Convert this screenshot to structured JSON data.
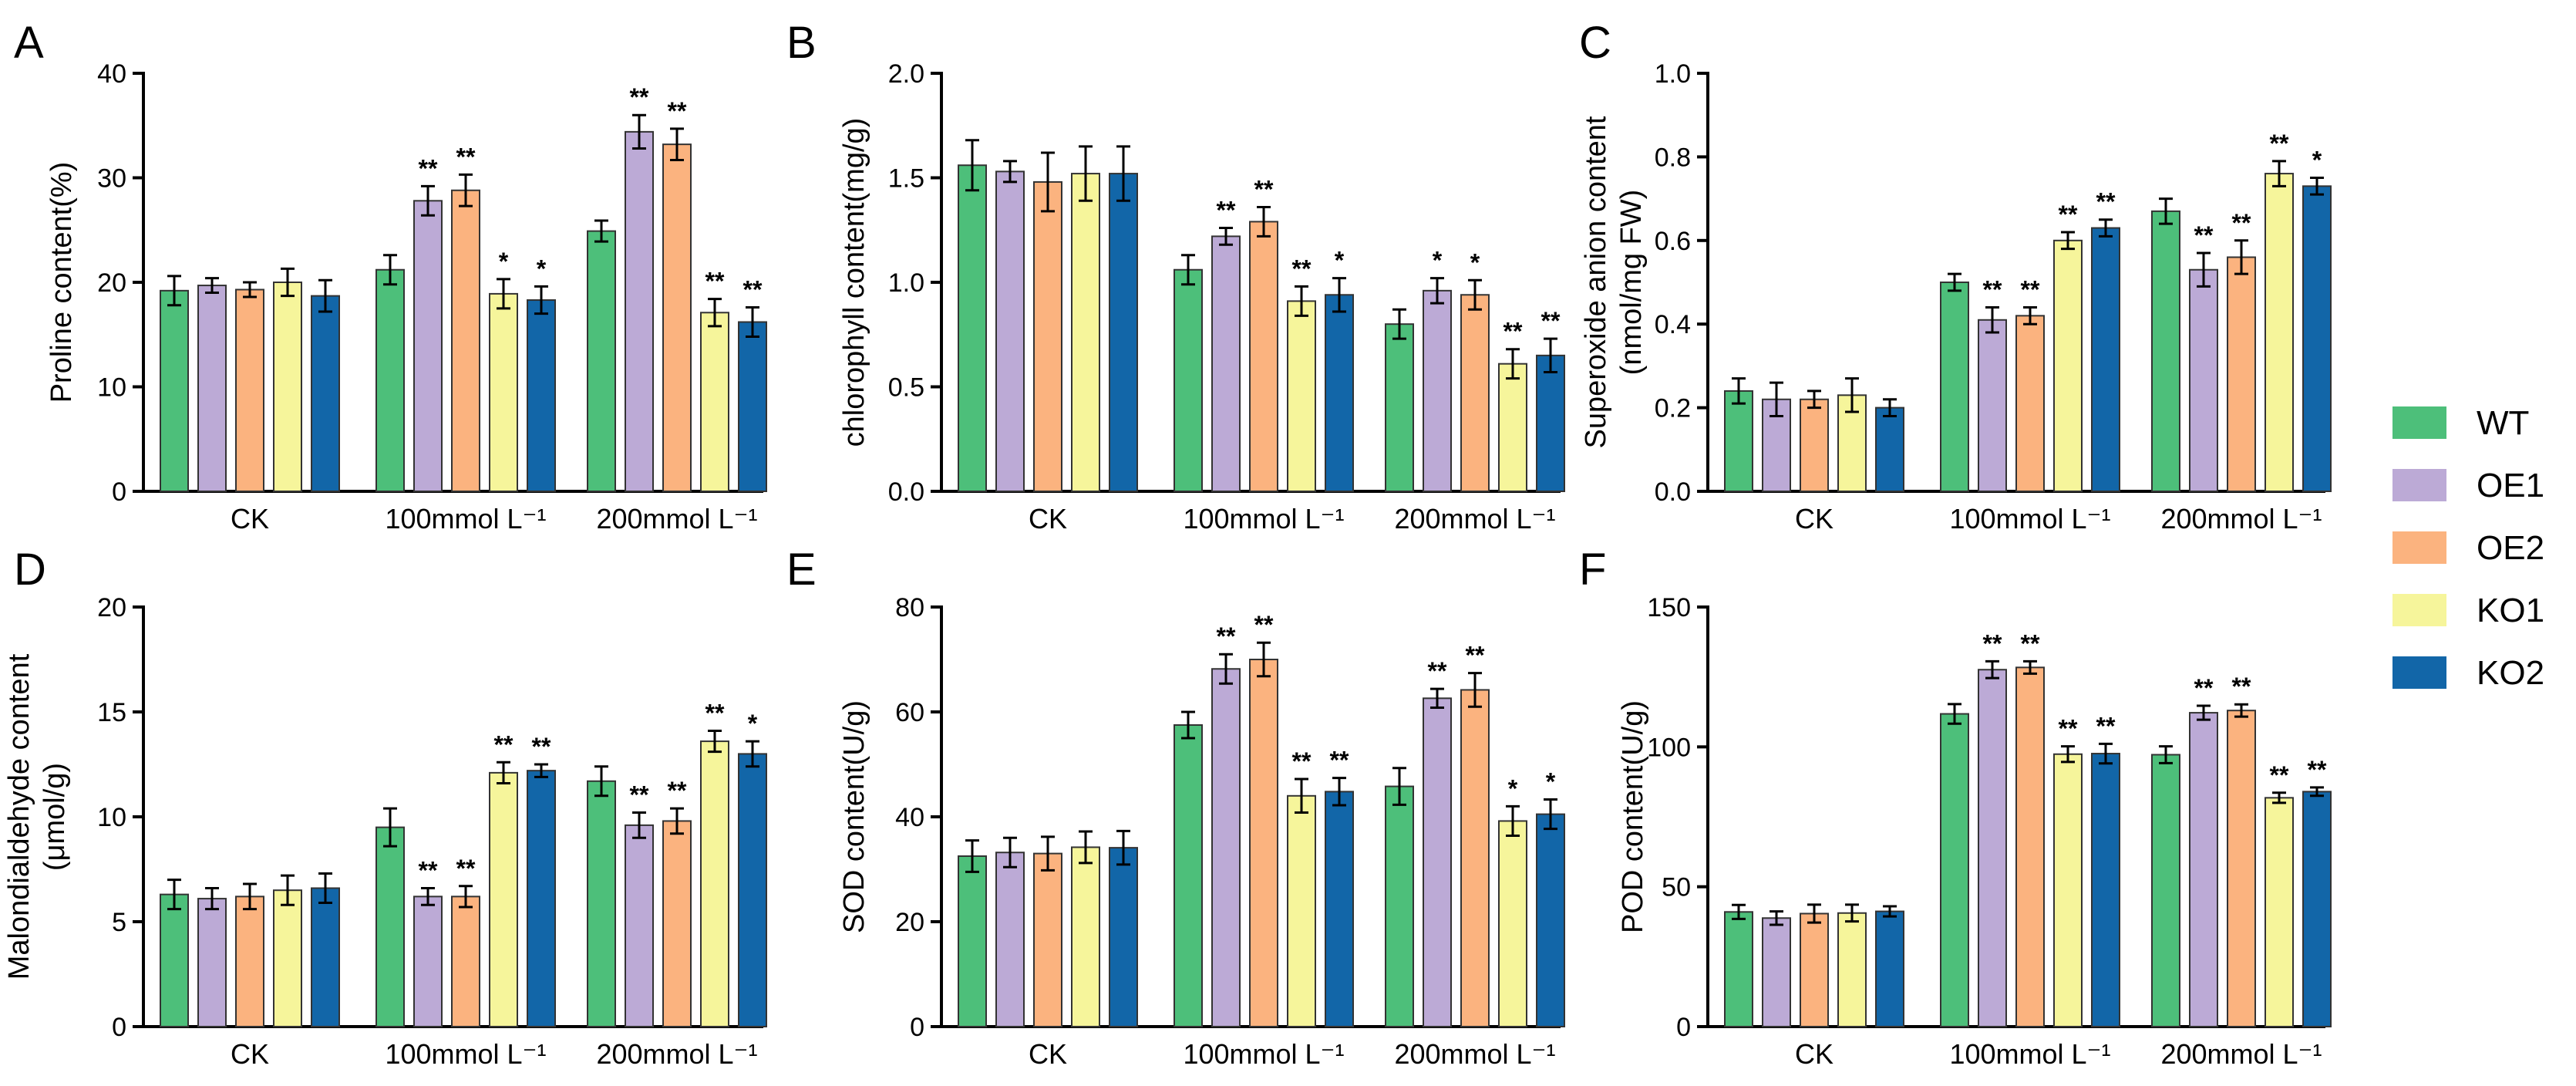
{
  "legend": {
    "items": [
      {
        "name": "WT",
        "color": "#4dbf7a"
      },
      {
        "name": "OE1",
        "color": "#bcaad6"
      },
      {
        "name": "OE2",
        "color": "#fbb37f"
      },
      {
        "name": "KO1",
        "color": "#f6f59b"
      },
      {
        "name": "KO2",
        "color": "#1266a8"
      }
    ]
  },
  "chart_data": [
    {
      "type": "bar",
      "panel": "A",
      "ylabel": "Proline content(%)",
      "ylim": [
        0,
        40
      ],
      "yticks": [
        "0",
        "10",
        "20",
        "30",
        "40"
      ],
      "categories": [
        "CK",
        "100mmol L⁻¹",
        "200mmol L⁻¹"
      ],
      "series": [
        {
          "name": "WT",
          "values": [
            19.2,
            21.2,
            24.9
          ],
          "errors": [
            1.4,
            1.4,
            1.0
          ],
          "sig": [
            "",
            "",
            ""
          ]
        },
        {
          "name": "OE1",
          "values": [
            19.7,
            27.8,
            34.4
          ],
          "errors": [
            0.7,
            1.4,
            1.6
          ],
          "sig": [
            "",
            "**",
            "**"
          ]
        },
        {
          "name": "OE2",
          "values": [
            19.3,
            28.8,
            33.2
          ],
          "errors": [
            0.7,
            1.5,
            1.5
          ],
          "sig": [
            "",
            "**",
            "**"
          ]
        },
        {
          "name": "KO1",
          "values": [
            20.0,
            18.9,
            17.1
          ],
          "errors": [
            1.3,
            1.4,
            1.3
          ],
          "sig": [
            "",
            "*",
            "**"
          ]
        },
        {
          "name": "KO2",
          "values": [
            18.7,
            18.3,
            16.2
          ],
          "errors": [
            1.5,
            1.3,
            1.4
          ],
          "sig": [
            "",
            "*",
            "**"
          ]
        }
      ]
    },
    {
      "type": "bar",
      "panel": "B",
      "ylabel": "chlorophyll content(mg/g)",
      "ylim": [
        0,
        2.0
      ],
      "yticks": [
        "0.0",
        "0.5",
        "1.0",
        "1.5",
        "2.0"
      ],
      "categories": [
        "CK",
        "100mmol L⁻¹",
        "200mmol L⁻¹"
      ],
      "series": [
        {
          "name": "WT",
          "values": [
            1.56,
            1.06,
            0.8
          ],
          "errors": [
            0.12,
            0.07,
            0.07
          ],
          "sig": [
            "",
            "",
            ""
          ]
        },
        {
          "name": "OE1",
          "values": [
            1.53,
            1.22,
            0.96
          ],
          "errors": [
            0.05,
            0.04,
            0.06
          ],
          "sig": [
            "",
            "**",
            "*"
          ]
        },
        {
          "name": "OE2",
          "values": [
            1.48,
            1.29,
            0.94
          ],
          "errors": [
            0.14,
            0.07,
            0.07
          ],
          "sig": [
            "",
            "**",
            "*"
          ]
        },
        {
          "name": "KO1",
          "values": [
            1.52,
            0.91,
            0.61
          ],
          "errors": [
            0.13,
            0.07,
            0.07
          ],
          "sig": [
            "",
            "**",
            "**"
          ]
        },
        {
          "name": "KO2",
          "values": [
            1.52,
            0.94,
            0.65
          ],
          "errors": [
            0.13,
            0.08,
            0.08
          ],
          "sig": [
            "",
            "*",
            "**"
          ]
        }
      ]
    },
    {
      "type": "bar",
      "panel": "C",
      "ylabel": [
        "Superoxide anion content",
        "(nmol/mg FW)"
      ],
      "ylim": [
        0,
        1.0
      ],
      "yticks": [
        "0.0",
        "0.2",
        "0.4",
        "0.6",
        "0.8",
        "1.0"
      ],
      "categories": [
        "CK",
        "100mmol L⁻¹",
        "200mmol L⁻¹"
      ],
      "series": [
        {
          "name": "WT",
          "values": [
            0.24,
            0.5,
            0.67
          ],
          "errors": [
            0.03,
            0.02,
            0.03
          ],
          "sig": [
            "",
            "",
            ""
          ]
        },
        {
          "name": "OE1",
          "values": [
            0.22,
            0.41,
            0.53
          ],
          "errors": [
            0.04,
            0.03,
            0.04
          ],
          "sig": [
            "",
            "**",
            "**"
          ]
        },
        {
          "name": "OE2",
          "values": [
            0.22,
            0.42,
            0.56
          ],
          "errors": [
            0.02,
            0.02,
            0.04
          ],
          "sig": [
            "",
            "**",
            "**"
          ]
        },
        {
          "name": "KO1",
          "values": [
            0.23,
            0.6,
            0.76
          ],
          "errors": [
            0.04,
            0.02,
            0.03
          ],
          "sig": [
            "",
            "**",
            "**"
          ]
        },
        {
          "name": "KO2",
          "values": [
            0.2,
            0.63,
            0.73
          ],
          "errors": [
            0.02,
            0.02,
            0.02
          ],
          "sig": [
            "",
            "**",
            "*"
          ]
        }
      ]
    },
    {
      "type": "bar",
      "panel": "D",
      "ylabel": [
        "Malondialdehyde content",
        "(μmol/g)"
      ],
      "ylim": [
        0,
        20
      ],
      "yticks": [
        "0",
        "5",
        "10",
        "15",
        "20"
      ],
      "categories": [
        "CK",
        "100mmol L⁻¹",
        "200mmol L⁻¹"
      ],
      "series": [
        {
          "name": "WT",
          "values": [
            6.3,
            9.5,
            11.7
          ],
          "errors": [
            0.7,
            0.9,
            0.7
          ],
          "sig": [
            "",
            "",
            ""
          ]
        },
        {
          "name": "OE1",
          "values": [
            6.1,
            6.2,
            9.6
          ],
          "errors": [
            0.5,
            0.4,
            0.6
          ],
          "sig": [
            "",
            "**",
            "**"
          ]
        },
        {
          "name": "OE2",
          "values": [
            6.2,
            6.2,
            9.8
          ],
          "errors": [
            0.6,
            0.5,
            0.6
          ],
          "sig": [
            "",
            "**",
            "**"
          ]
        },
        {
          "name": "KO1",
          "values": [
            6.5,
            12.1,
            13.6
          ],
          "errors": [
            0.7,
            0.5,
            0.5
          ],
          "sig": [
            "",
            "**",
            "**"
          ]
        },
        {
          "name": "KO2",
          "values": [
            6.6,
            12.2,
            13.0
          ],
          "errors": [
            0.7,
            0.3,
            0.6
          ],
          "sig": [
            "",
            "**",
            "*"
          ]
        }
      ]
    },
    {
      "type": "bar",
      "panel": "E",
      "ylabel": "SOD content(U/g)",
      "ylim": [
        0,
        80
      ],
      "yticks": [
        "0",
        "20",
        "40",
        "60",
        "80"
      ],
      "categories": [
        "CK",
        "100mmol L⁻¹",
        "200mmol L⁻¹"
      ],
      "series": [
        {
          "name": "WT",
          "values": [
            32.5,
            57.5,
            45.8
          ],
          "errors": [
            3.0,
            2.5,
            3.5
          ],
          "sig": [
            "",
            "",
            ""
          ]
        },
        {
          "name": "OE1",
          "values": [
            33.2,
            68.2,
            62.6
          ],
          "errors": [
            2.8,
            2.8,
            1.8
          ],
          "sig": [
            "",
            "**",
            "**"
          ]
        },
        {
          "name": "OE2",
          "values": [
            33.0,
            70.0,
            64.2
          ],
          "errors": [
            3.2,
            3.2,
            3.2
          ],
          "sig": [
            "",
            "**",
            "**"
          ]
        },
        {
          "name": "KO1",
          "values": [
            34.2,
            44.0,
            39.2
          ],
          "errors": [
            3.0,
            3.2,
            2.8
          ],
          "sig": [
            "",
            "**",
            "*"
          ]
        },
        {
          "name": "KO2",
          "values": [
            34.1,
            44.8,
            40.5
          ],
          "errors": [
            3.2,
            2.6,
            2.8
          ],
          "sig": [
            "",
            "**",
            "*"
          ]
        }
      ]
    },
    {
      "type": "bar",
      "panel": "F",
      "ylabel": "POD content(U/g)",
      "ylim": [
        0,
        150
      ],
      "yticks": [
        "0",
        "50",
        "100",
        "150"
      ],
      "categories": [
        "CK",
        "100mmol L⁻¹",
        "200mmol L⁻¹"
      ],
      "series": [
        {
          "name": "WT",
          "values": [
            41.0,
            111.8,
            97.2
          ],
          "errors": [
            2.5,
            3.5,
            3.0
          ],
          "sig": [
            "",
            "",
            ""
          ]
        },
        {
          "name": "OE1",
          "values": [
            38.8,
            127.6,
            112.2
          ],
          "errors": [
            2.4,
            3.0,
            2.5
          ],
          "sig": [
            "",
            "**",
            "**"
          ]
        },
        {
          "name": "OE2",
          "values": [
            40.4,
            128.4,
            113.0
          ],
          "errors": [
            3.2,
            2.2,
            2.2
          ],
          "sig": [
            "",
            "**",
            "**"
          ]
        },
        {
          "name": "KO1",
          "values": [
            40.6,
            97.4,
            81.8
          ],
          "errors": [
            3.0,
            2.8,
            1.8
          ],
          "sig": [
            "",
            "**",
            "**"
          ]
        },
        {
          "name": "KO2",
          "values": [
            41.2,
            97.6,
            84.0
          ],
          "errors": [
            1.8,
            3.5,
            1.5
          ],
          "sig": [
            "",
            "**",
            "**"
          ]
        }
      ]
    }
  ]
}
